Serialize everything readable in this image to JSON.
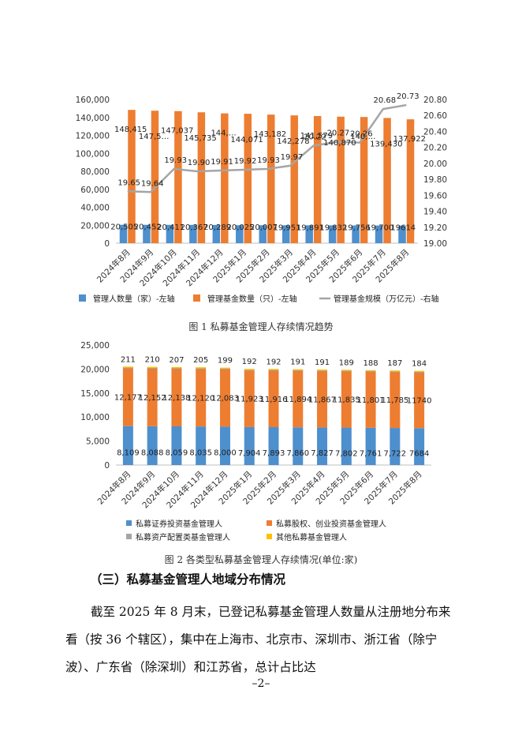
{
  "chart_data": [
    {
      "type": "bar",
      "title": "",
      "categories": [
        "2024年8月",
        "2024年9月",
        "2024年10月",
        "2024年11月",
        "2024年12月",
        "2025年1月",
        "2025年2月",
        "2025年3月",
        "2025年4月",
        "2025年5月",
        "2025年6月",
        "2025年7月",
        "2025年8月"
      ],
      "left_axis": {
        "min": 0,
        "max": 160000,
        "step": 20000,
        "ticks": [
          "0",
          "20,000",
          "40,000",
          "60,000",
          "80,000",
          "100,000",
          "120,000",
          "140,000",
          "160,000"
        ]
      },
      "right_axis": {
        "min": 19.0,
        "max": 20.8,
        "step": 0.2,
        "ticks": [
          "19.00",
          "19.20",
          "19.40",
          "19.60",
          "19.80",
          "20.00",
          "20.20",
          "20.40",
          "20.60",
          "20.80"
        ]
      },
      "series": [
        {
          "name": "管理人数量（家）-左轴",
          "kind": "bar",
          "axis": "left",
          "color": "#4e8fcd",
          "values": [
            20505,
            20452,
            20411,
            20367,
            20289,
            20025,
            20007,
            19951,
            19891,
            19832,
            19756,
            19700,
            19614
          ],
          "labels": [
            "20,505",
            "20,452",
            "20,411",
            "20,367",
            "20,289",
            "20,025",
            "20,007",
            "19,951",
            "19,891",
            "19,832",
            "19,756",
            "19,700",
            "19614"
          ]
        },
        {
          "name": "管理基金数量（只）-左轴",
          "kind": "bar",
          "axis": "left",
          "color": "#ed7d31",
          "values": [
            148415,
            147500,
            147037,
            145735,
            144500,
            144071,
            143182,
            142278,
            141579,
            140870,
            140500,
            139430,
            137922
          ],
          "labels": [
            "148,415",
            "147,5…",
            "147,037",
            "145,735",
            "144,…",
            "144,071",
            "143,182",
            "142,278",
            "141,579",
            "140,870",
            "140,…",
            "139,430",
            "137,922"
          ]
        },
        {
          "name": "管理基金规模（万亿元）-右轴",
          "kind": "line",
          "axis": "right",
          "color": "#a5a5a5",
          "values": [
            19.65,
            19.64,
            19.93,
            19.9,
            19.91,
            19.92,
            19.93,
            19.97,
            20.22,
            20.27,
            20.26,
            20.68,
            20.73
          ],
          "labels": [
            "19.65",
            "19.64",
            "19.93",
            "19.90",
            "19.91",
            "19.92",
            "19.93",
            "19.97",
            "20.22",
            "20.27",
            "20.26",
            "20.68",
            "20.73"
          ]
        }
      ],
      "caption": "图 1  私募基金管理人存续情况趋势"
    },
    {
      "type": "bar",
      "stacked": true,
      "title": "",
      "categories": [
        "2024年8月",
        "2024年9月",
        "2024年10月",
        "2024年11月",
        "2024年12月",
        "2025年1月",
        "2025年2月",
        "2025年3月",
        "2025年4月",
        "2025年5月",
        "2025年6月",
        "2025年7月",
        "2025年8月"
      ],
      "ylim": [
        0,
        25000
      ],
      "ticks": [
        "0",
        "5,000",
        "10,000",
        "15,000",
        "20,000",
        "25,000"
      ],
      "series": [
        {
          "name": "私募证券投资基金管理人",
          "color": "#4e8fcd",
          "values": [
            8109,
            8088,
            8059,
            8035,
            8000,
            7904,
            7893,
            7860,
            7827,
            7802,
            7761,
            7722,
            7684
          ],
          "labels": [
            "8,109",
            "8,088",
            "8,059",
            "8,035",
            "8,000",
            "7,904",
            "7,893",
            "7,860",
            "7,827",
            "7,802",
            "7,761",
            "7,722",
            "7684"
          ]
        },
        {
          "name": "私募股权、创业投资基金管理人",
          "color": "#ed7d31",
          "values": [
            12177,
            12152,
            12138,
            12120,
            12083,
            11923,
            11916,
            11894,
            11867,
            11835,
            11801,
            11785,
            11740
          ],
          "labels": [
            "12,177",
            "12,152",
            "12,138",
            "12,120",
            "12,083",
            "11,923",
            "11,916",
            "11,894",
            "11,867",
            "11,835",
            "11,801",
            "11,785",
            "11740"
          ]
        },
        {
          "name": "私募资产配置类基金管理人",
          "color": "#a5a5a5",
          "values": [
            9,
            9,
            9,
            9,
            9,
            9,
            9,
            9,
            9,
            9,
            9,
            9,
            9
          ]
        },
        {
          "name": "其他私募基金管理人",
          "color": "#ffc000",
          "values": [
            211,
            210,
            207,
            205,
            199,
            192,
            192,
            191,
            191,
            189,
            188,
            187,
            184
          ],
          "labels": [
            "211",
            "210",
            "207",
            "205",
            "199",
            "192",
            "192",
            "191",
            "191",
            "189",
            "188",
            "187",
            "184"
          ]
        }
      ],
      "caption": "图 2  各类型私募基金管理人存续情况(单位:家)"
    }
  ],
  "section_heading": "（三）私募基金管理人地域分布情况",
  "paragraph": "截至 2025 年 8 月末，已登记私募基金管理人数量从注册地分布来看（按 36 个辖区），集中在上海市、北京市、深圳市、浙江省（除宁波）、广东省（除深圳）和江苏省，总计占比达",
  "page_number": "–2–"
}
